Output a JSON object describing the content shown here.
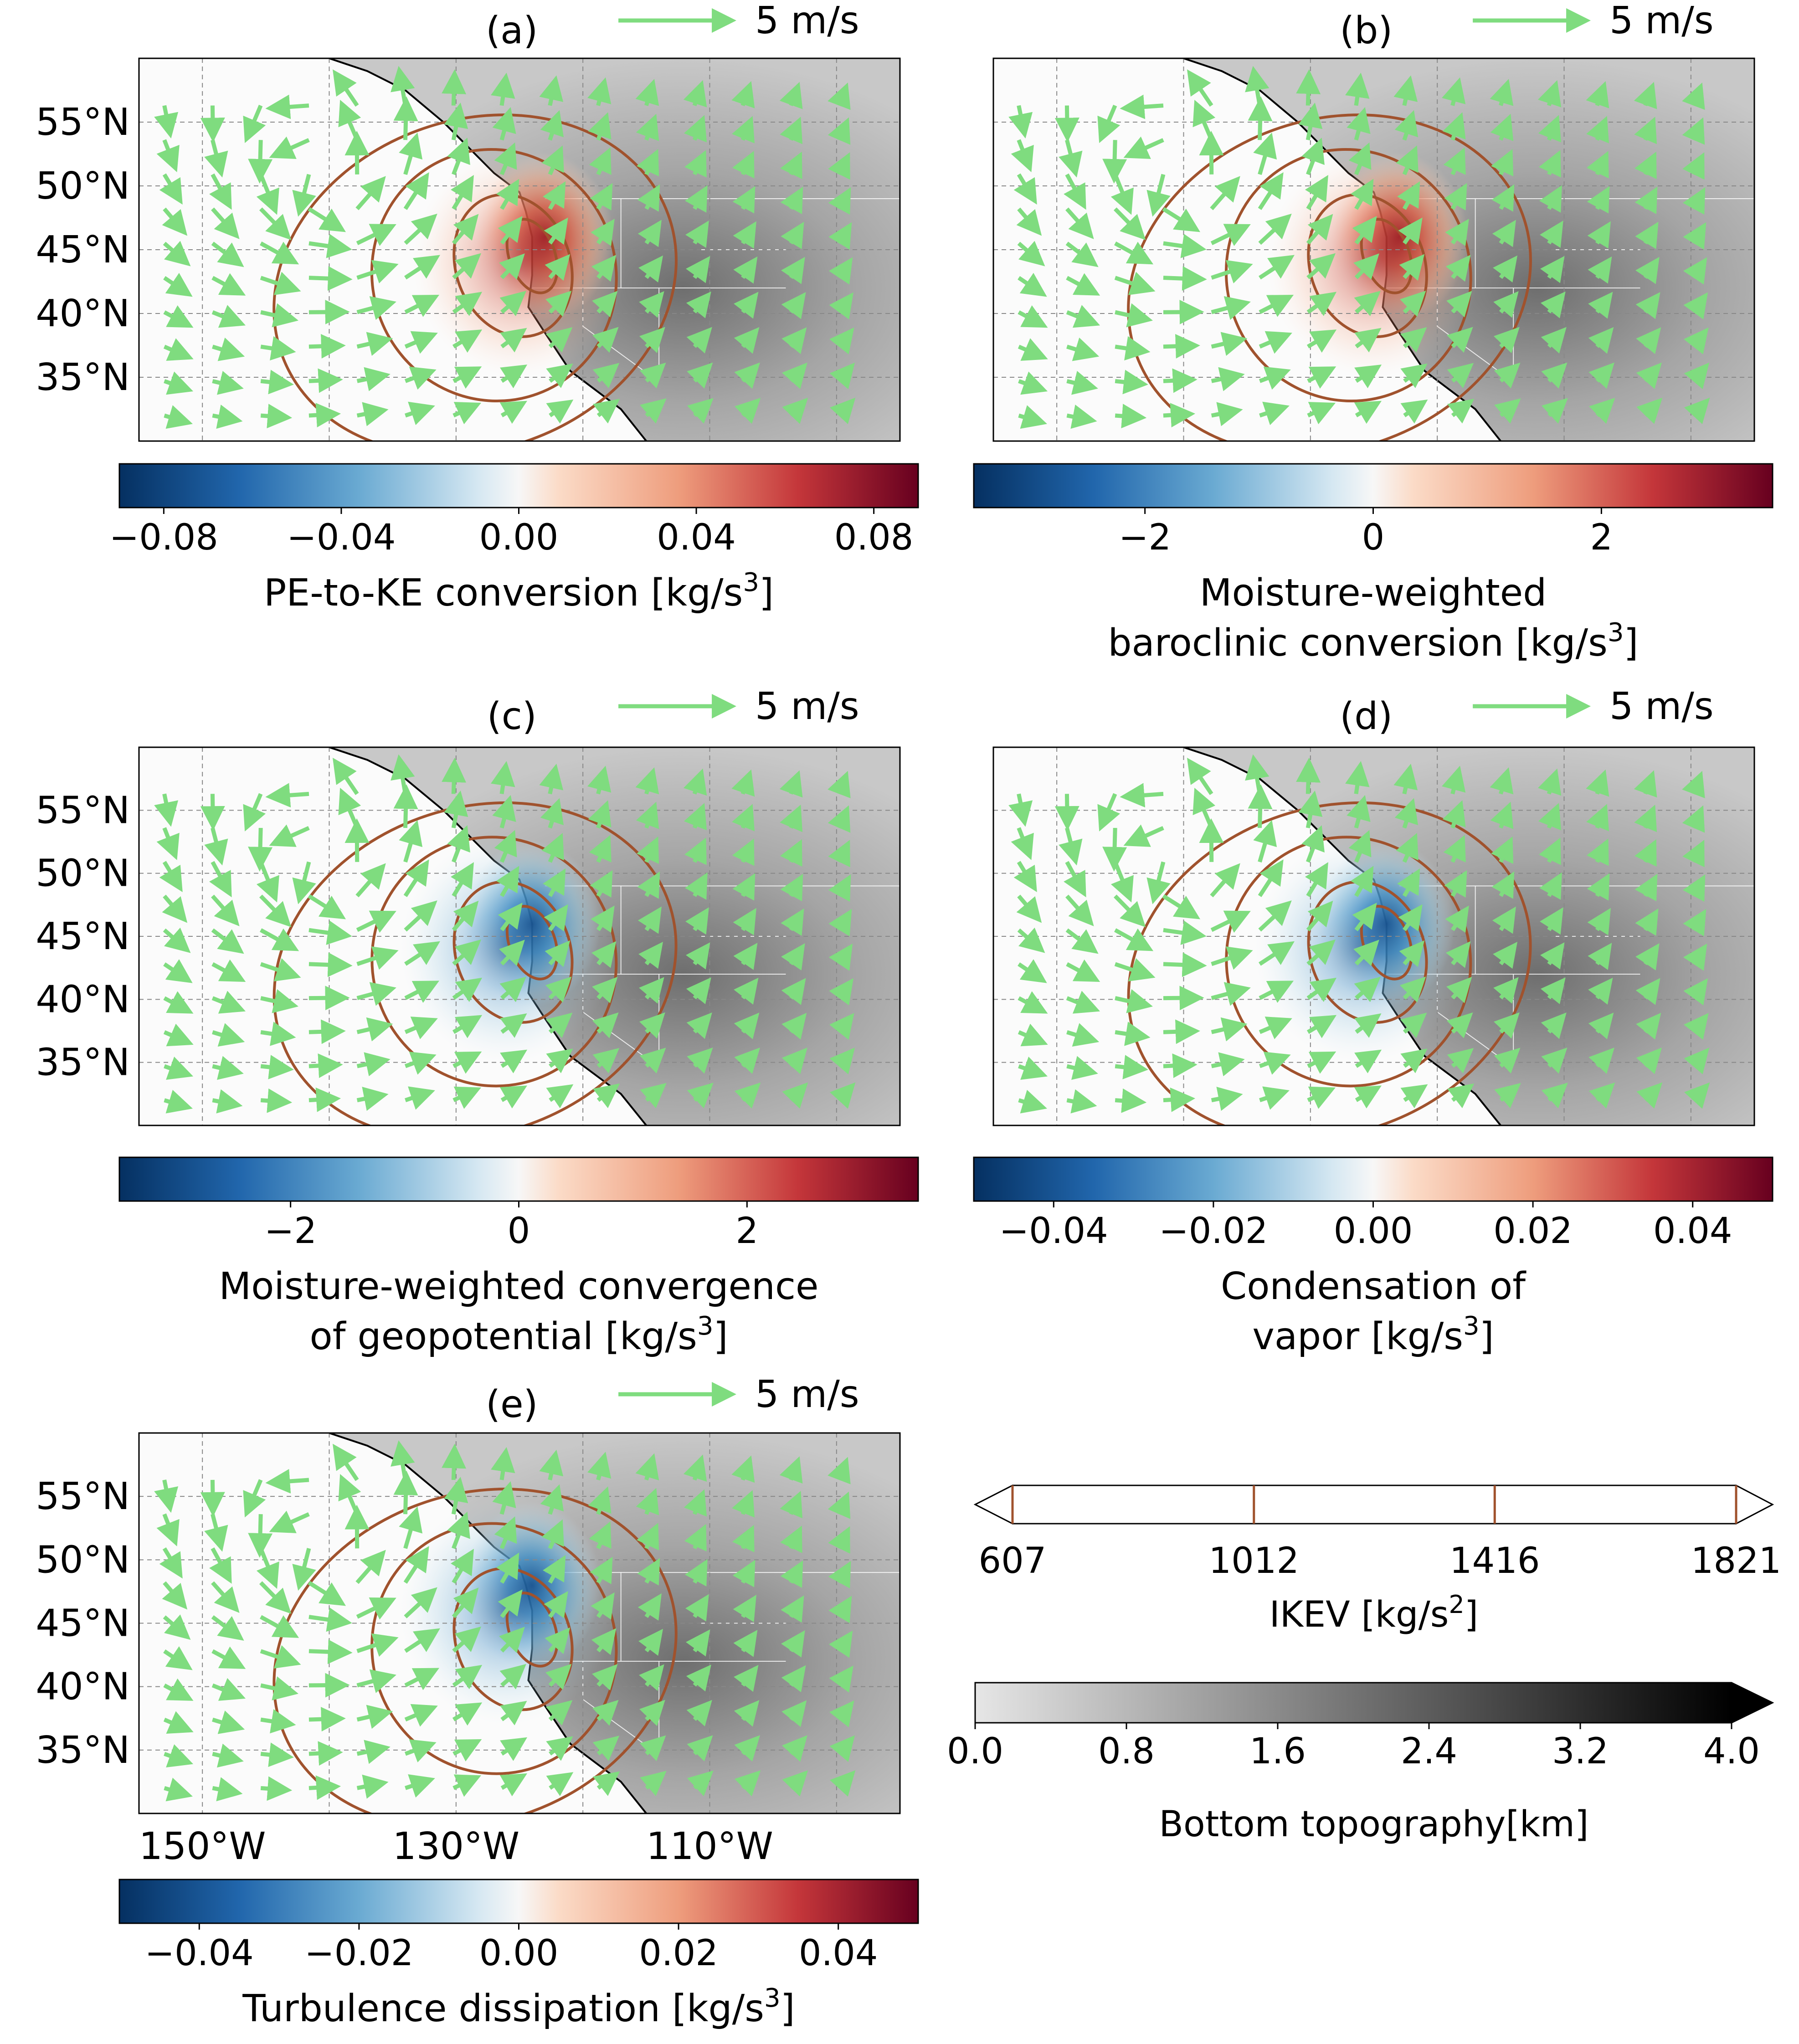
{
  "colors": {
    "arrow": "#7fdc7f",
    "ikev_contour": "#a0522d",
    "cmap_neg": "#0b3b7a",
    "cmap_mid": "#f7f7f7",
    "cmap_pos": "#67000d",
    "topo_low": "#e8e8e8",
    "topo_high": "#000000"
  },
  "chart_data": [
    {
      "type": "heatmap",
      "panel": "(a)",
      "title": "(a)",
      "reference_arrow_label": "5 m/s",
      "colorbar_label": "PE-to-KE conversion [kg/s",
      "colorbar_unit_exp": "3",
      "colorbar_unit_close": "]",
      "colorbar_range": [
        -0.09,
        0.09
      ],
      "colorbar_ticks": [
        -0.08,
        -0.04,
        0.0,
        0.04,
        0.08
      ],
      "colorbar_tick_labels": [
        "−0.08",
        "−0.04",
        "0.00",
        "0.04",
        "0.08"
      ],
      "y_tick_labels": [
        "55°N",
        "50°N",
        "45°N",
        "40°N",
        "35°N"
      ],
      "x_tick_labels": [],
      "lon_range": [
        -155,
        -95
      ],
      "lat_range": [
        30,
        60
      ],
      "ikev_contours": [
        607,
        1012,
        1416,
        1821
      ],
      "hotspot": {
        "lon": -123,
        "lat": 46,
        "sign": "positive"
      }
    },
    {
      "type": "heatmap",
      "panel": "(b)",
      "title": "(b)",
      "reference_arrow_label": "5 m/s",
      "colorbar_label_line1": "Moisture-weighted",
      "colorbar_label": "baroclinic conversion [kg/s",
      "colorbar_unit_exp": "3",
      "colorbar_unit_close": "]",
      "colorbar_range": [
        -3.5,
        3.5
      ],
      "colorbar_ticks": [
        -2,
        0,
        2
      ],
      "colorbar_tick_labels": [
        "−2",
        "0",
        "2"
      ],
      "y_tick_labels": [],
      "x_tick_labels": [],
      "lon_range": [
        -155,
        -95
      ],
      "lat_range": [
        30,
        60
      ],
      "ikev_contours": [
        607,
        1012,
        1416,
        1821
      ],
      "hotspot": {
        "lon": -123,
        "lat": 46,
        "sign": "positive"
      }
    },
    {
      "type": "heatmap",
      "panel": "(c)",
      "title": "(c)",
      "reference_arrow_label": "5 m/s",
      "colorbar_label_line1": "Moisture-weighted convergence",
      "colorbar_label": "of geopotential [kg/s",
      "colorbar_unit_exp": "3",
      "colorbar_unit_close": "]",
      "colorbar_range": [
        -3.5,
        3.5
      ],
      "colorbar_ticks": [
        -2,
        0,
        2
      ],
      "colorbar_tick_labels": [
        "−2",
        "0",
        "2"
      ],
      "y_tick_labels": [
        "55°N",
        "50°N",
        "45°N",
        "40°N",
        "35°N"
      ],
      "x_tick_labels": [],
      "lon_range": [
        -155,
        -95
      ],
      "lat_range": [
        30,
        60
      ],
      "ikev_contours": [
        607,
        1012,
        1416,
        1821
      ],
      "hotspot": {
        "lon": -124,
        "lat": 46,
        "sign": "negative"
      }
    },
    {
      "type": "heatmap",
      "panel": "(d)",
      "title": "(d)",
      "reference_arrow_label": "5 m/s",
      "colorbar_label_line1": "Condensation of",
      "colorbar_label": "vapor [kg/s",
      "colorbar_unit_exp": "3",
      "colorbar_unit_close": "]",
      "colorbar_range": [
        -0.05,
        0.05
      ],
      "colorbar_ticks": [
        -0.04,
        -0.02,
        0.0,
        0.02,
        0.04
      ],
      "colorbar_tick_labels": [
        "−0.04",
        "−0.02",
        "0.00",
        "0.02",
        "0.04"
      ],
      "y_tick_labels": [],
      "x_tick_labels": [],
      "lon_range": [
        -155,
        -95
      ],
      "lat_range": [
        30,
        60
      ],
      "ikev_contours": [
        607,
        1012,
        1416,
        1821
      ],
      "hotspot": {
        "lon": -124,
        "lat": 46,
        "sign": "negative"
      }
    },
    {
      "type": "heatmap",
      "panel": "(e)",
      "title": "(e)",
      "reference_arrow_label": "5 m/s",
      "colorbar_label": "Turbulence dissipation  [kg/s",
      "colorbar_unit_exp": "3",
      "colorbar_unit_close": "]",
      "colorbar_range": [
        -0.05,
        0.05
      ],
      "colorbar_ticks": [
        -0.04,
        -0.02,
        0.0,
        0.02,
        0.04
      ],
      "colorbar_tick_labels": [
        "−0.04",
        "−0.02",
        "0.00",
        "0.02",
        "0.04"
      ],
      "y_tick_labels": [
        "55°N",
        "50°N",
        "45°N",
        "40°N",
        "35°N"
      ],
      "x_tick_labels": [
        "150°W",
        "130°W",
        "110°W"
      ],
      "lon_range": [
        -155,
        -95
      ],
      "lat_range": [
        30,
        60
      ],
      "ikev_contours": [
        607,
        1012,
        1416,
        1821
      ],
      "hotspot": {
        "lon": -124,
        "lat": 48,
        "sign": "negative"
      }
    }
  ],
  "ikev_legend": {
    "levels": [
      607,
      1012,
      1416,
      1821
    ],
    "tick_labels": [
      "607",
      "1012",
      "1416",
      "1821"
    ],
    "label": "IKEV [kg/s",
    "unit_exp": "2",
    "unit_close": "]"
  },
  "topography_legend": {
    "range": [
      0.0,
      4.0
    ],
    "ticks": [
      0.0,
      0.8,
      1.6,
      2.4,
      3.2,
      4.0
    ],
    "tick_labels": [
      "0.0",
      "0.8",
      "1.6",
      "2.4",
      "3.2",
      "4.0"
    ],
    "label": "Bottom topography[km]",
    "extend": "max"
  }
}
